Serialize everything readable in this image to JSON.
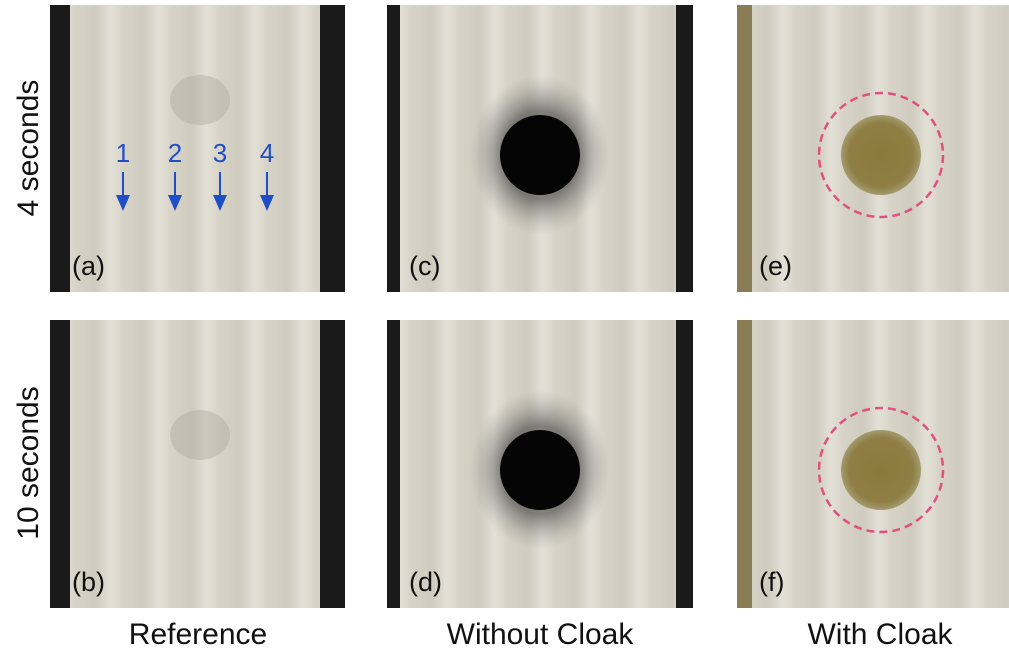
{
  "row_labels": [
    "4 seconds",
    "10 seconds"
  ],
  "column_labels": [
    "Reference",
    "Without Cloak",
    "With Cloak"
  ],
  "panels": [
    "(a)",
    "(b)",
    "(c)",
    "(d)",
    "(e)",
    "(f)"
  ],
  "arrow_labels": [
    "1",
    "2",
    "3",
    "4"
  ]
}
